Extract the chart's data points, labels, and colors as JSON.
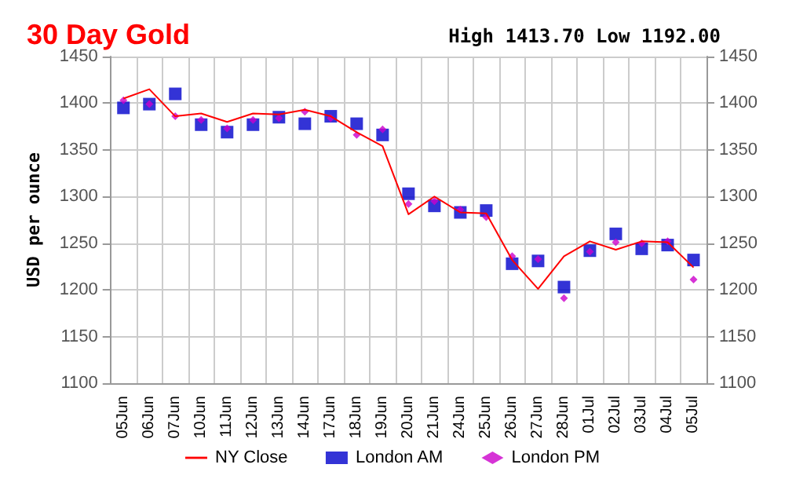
{
  "chart_data": {
    "type": "line",
    "title": "30 Day Gold",
    "subtitle": "High 1413.70 Low 1192.00",
    "ylabel": "USD per ounce",
    "categories": [
      "05Jun",
      "06Jun",
      "07Jun",
      "10Jun",
      "11Jun",
      "12Jun",
      "13Jun",
      "14Jun",
      "17Jun",
      "18Jun",
      "19Jun",
      "20Jun",
      "21Jun",
      "24Jun",
      "25Jun",
      "26Jun",
      "27Jun",
      "28Jun",
      "01Jul",
      "02Jul",
      "03Jul",
      "04Jul",
      "05Jul"
    ],
    "series": [
      {
        "name": "NY Close",
        "marker": "none",
        "color": "#ff0000",
        "values": [
          1405,
          1415,
          1386,
          1389,
          1380,
          1389,
          1388,
          1393,
          1386,
          1369,
          1354,
          1281,
          1300,
          1283,
          1282,
          1232,
          1201,
          1236,
          1252,
          1243,
          1252,
          1251,
          1224
        ]
      },
      {
        "name": "London AM",
        "type": "scatter",
        "marker": "square",
        "color": "#0000cc",
        "values": [
          1395,
          1399,
          1410,
          1377,
          1369,
          1377,
          1385,
          1378,
          1386,
          1378,
          1366,
          1303,
          1290,
          1283,
          1285,
          1228,
          1231,
          1203,
          1242,
          1260,
          1244,
          1248,
          1232
        ]
      },
      {
        "name": "London PM",
        "type": "scatter",
        "marker": "diamond",
        "color": "#cc00cc",
        "values": [
          1403,
          1399,
          1386,
          1382,
          1373,
          1382,
          1384,
          1391,
          1384,
          1366,
          1372,
          1292,
          1295,
          1286,
          1278,
          1236,
          1233,
          1191,
          1241,
          1251,
          1250,
          1252,
          1211
        ]
      }
    ],
    "ylim": [
      1100,
      1450
    ],
    "yticks": [
      1100,
      1150,
      1200,
      1250,
      1300,
      1350,
      1400,
      1450
    ],
    "y2lim": [
      1100,
      1450
    ],
    "y2ticks": [
      1100,
      1150,
      1200,
      1250,
      1300,
      1350,
      1400,
      1450
    ],
    "grid": true,
    "legend": "bottom"
  }
}
